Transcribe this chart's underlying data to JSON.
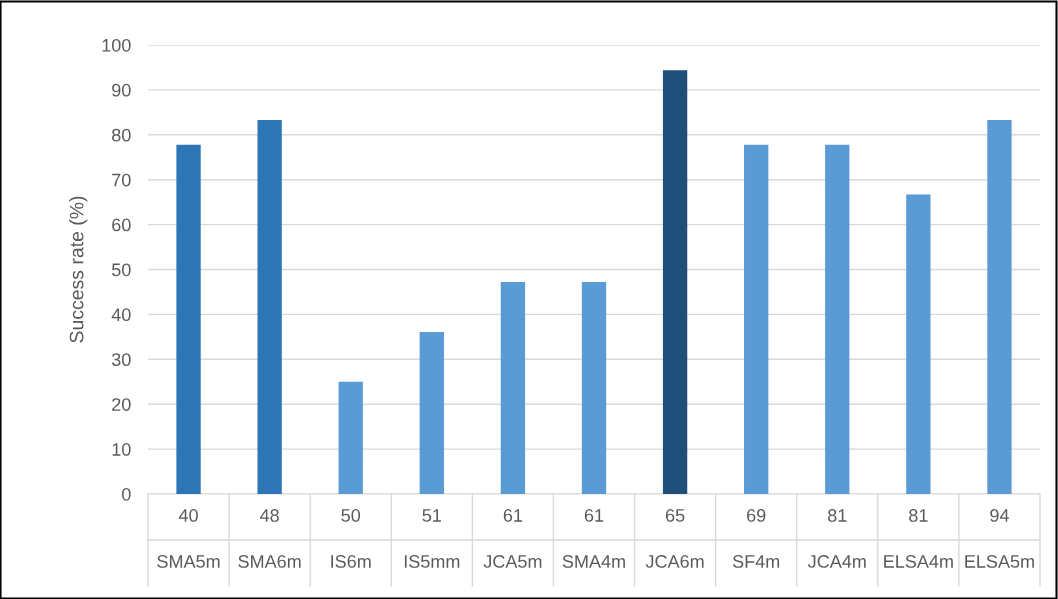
{
  "chart_data": {
    "type": "bar",
    "ylabel": "Success rate (%)",
    "categories": [
      "40\nSMA5m",
      "48\nSMA6m",
      "50\nIS6m",
      "51\nIS5mm",
      "61\nJCA5m",
      "61\nSMA4m",
      "65\nJCA6m",
      "69\nSF4m",
      "81\nJCA4m",
      "81\nELSA4m",
      "94\nELSA5m"
    ],
    "values": [
      77.8,
      83.3,
      25,
      36.1,
      47.2,
      47.2,
      94.4,
      77.8,
      77.8,
      66.7,
      83.3
    ],
    "colors": [
      "#2e75b6",
      "#2e75b6",
      "#5b9bd5",
      "#5b9bd5",
      "#5b9bd5",
      "#5b9bd5",
      "#1f4e79",
      "#5b9bd5",
      "#5b9bd5",
      "#5b9bd5",
      "#5b9bd5"
    ],
    "ylim": [
      0,
      100
    ],
    "yticks": [
      0,
      10,
      20,
      30,
      40,
      50,
      60,
      70,
      80,
      90,
      100
    ],
    "grid": "y"
  }
}
